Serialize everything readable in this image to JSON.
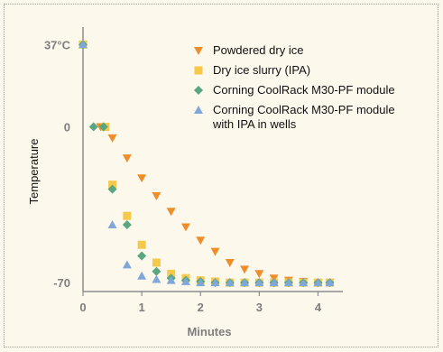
{
  "chart_data": {
    "type": "scatter",
    "xlabel": "Minutes",
    "ylabel": "Temperature",
    "xlim": [
      0,
      4.3
    ],
    "ylim": [
      -74,
      42
    ],
    "x_ticks": [
      0,
      1,
      2,
      3,
      4
    ],
    "y_ticks": [
      {
        "value": 37,
        "label": "37°C"
      },
      {
        "value": 0,
        "label": "0"
      },
      {
        "value": -70,
        "label": "-70"
      }
    ],
    "legend_position": "top-right",
    "series": [
      {
        "name": "Powdered dry ice",
        "marker": "triangle-down",
        "color": "#ee8e2a",
        "x": [
          0,
          0.3,
          0.5,
          0.75,
          1.0,
          1.25,
          1.5,
          1.75,
          2.0,
          2.25,
          2.5,
          2.75,
          3.0,
          3.25,
          3.5,
          3.75,
          4.0,
          4.2
        ],
        "y": [
          37,
          0,
          -5,
          -14,
          -23,
          -31,
          -38,
          -45,
          -51,
          -56,
          -61,
          -64,
          -66,
          -68,
          -69,
          -69.5,
          -70,
          -70
        ]
      },
      {
        "name": "Dry ice slurry (IPA)",
        "marker": "square",
        "color": "#f7c94b",
        "x": [
          0,
          0.38,
          0.5,
          0.75,
          1.0,
          1.25,
          1.5,
          1.75,
          2.0,
          2.25,
          2.5,
          2.75,
          3.0,
          3.25,
          3.5,
          3.75,
          4.0,
          4.2
        ],
        "y": [
          37,
          0,
          -26,
          -40,
          -53,
          -61,
          -66,
          -68,
          -69,
          -69.5,
          -70,
          -70,
          -70,
          -70,
          -70,
          -70,
          -70,
          -70
        ]
      },
      {
        "name": "Corning CoolRack M30-PF module",
        "marker": "diamond",
        "color": "#58a682",
        "x": [
          0,
          0.18,
          0.35,
          0.5,
          0.75,
          1.0,
          1.25,
          1.5,
          1.75,
          2.0,
          2.25,
          2.5,
          2.75,
          3.0,
          3.25,
          3.5,
          3.75,
          4.0,
          4.2
        ],
        "y": [
          37,
          0,
          0,
          -28,
          -44,
          -58,
          -65,
          -68,
          -69,
          -69.5,
          -70,
          -70,
          -70,
          -70,
          -70,
          -70,
          -70,
          -70,
          -70
        ]
      },
      {
        "name": "Corning CoolRack M30-PF module with IPA in wells",
        "name_lines": [
          "Corning CoolRack M30-PF module",
          "with IPA in wells"
        ],
        "marker": "triangle-up",
        "color": "#7fa8d8",
        "x": [
          0,
          0.5,
          0.75,
          1.0,
          1.25,
          1.5,
          1.75,
          2.0,
          2.25,
          2.5,
          2.75,
          3.0,
          3.25,
          3.5,
          3.75,
          4.0,
          4.2
        ],
        "y": [
          37,
          -44,
          -62,
          -67,
          -68.5,
          -69,
          -69.5,
          -70,
          -70,
          -70,
          -70,
          -70,
          -70,
          -70,
          -70,
          -70,
          -70
        ]
      }
    ]
  }
}
